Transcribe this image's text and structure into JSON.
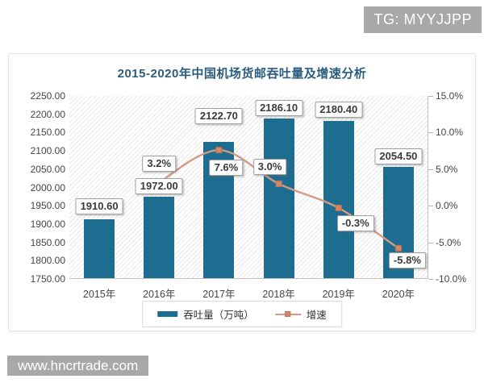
{
  "watermarks": {
    "top_right": "TG: MYYJJPP",
    "bottom_left": "www.hncrtrade.com"
  },
  "chart_data": {
    "type": "bar",
    "title": "2015-2020年中国机场货邮吞吐量及增速分析",
    "categories": [
      "2015年",
      "2016年",
      "2017年",
      "2018年",
      "2019年",
      "2020年"
    ],
    "series": [
      {
        "name": "吞吐量（万吨）",
        "kind": "bar",
        "axis": "left",
        "color": "#1d6d90",
        "values": [
          1910.6,
          1972.0,
          2122.7,
          2186.1,
          2180.4,
          2054.5
        ],
        "labels": [
          "1910.60",
          "1972.00",
          "2122.70",
          "2186.10",
          "2180.40",
          "2054.50"
        ]
      },
      {
        "name": "增速",
        "kind": "line",
        "axis": "right",
        "color": "#d49a86",
        "marker_color": "#d0886c",
        "marker_border": "#bb7257",
        "values": [
          null,
          3.2,
          7.6,
          3.0,
          -0.3,
          -5.8
        ],
        "labels": [
          null,
          "3.2%",
          "7.6%",
          "3.0%",
          "-0.3%",
          "-5.8%"
        ]
      }
    ],
    "left_axis": {
      "min": 1750,
      "max": 2250,
      "step": 50,
      "tick_labels": [
        "2250.00",
        "2200.00",
        "2150.00",
        "2100.00",
        "2050.00",
        "2000.00",
        "1950.00",
        "1900.00",
        "1850.00",
        "1800.00",
        "1750.00"
      ]
    },
    "right_axis": {
      "min": -10,
      "max": 15,
      "step": 5,
      "tick_labels": [
        "15.0%",
        "10.0%",
        "5.0%",
        "0.0%",
        "-5.0%",
        "-10.0%"
      ]
    },
    "legend_position": "bottom",
    "grid": false,
    "plot_background": "diagonal-hatch"
  }
}
